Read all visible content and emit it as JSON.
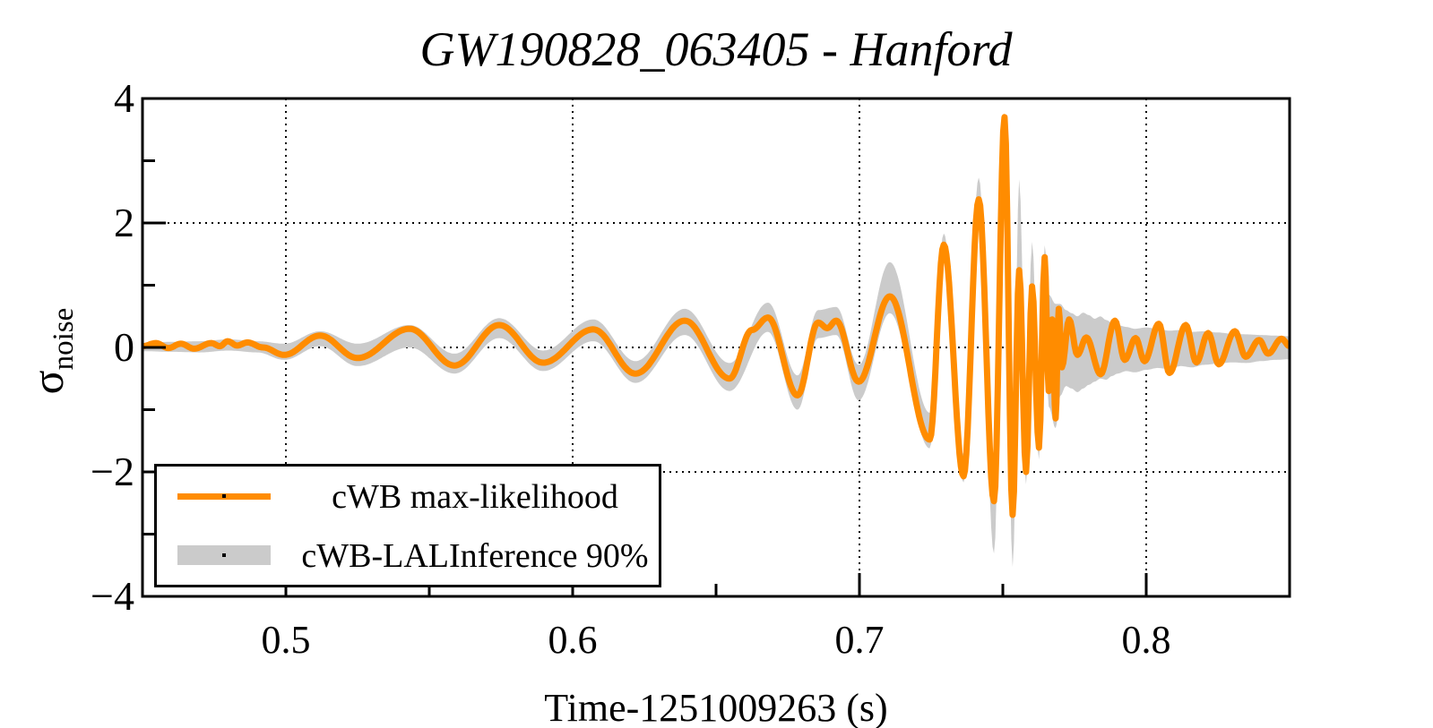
{
  "title": "GW190828_063405 - Hanford",
  "colors": {
    "line": "#FF8C00",
    "band": "#CBCBCB",
    "frame": "#000000",
    "grid": "#000000",
    "background": "#FFFFFF"
  },
  "legend": {
    "entries": [
      {
        "label": "cWB max-likelihood",
        "type": "line"
      },
      {
        "label": "cWB-LALInference 90%",
        "type": "band"
      }
    ]
  },
  "axes": {
    "ylabel_symbol": "σ",
    "ylabel_subscript": "noise",
    "xlabel": "Time-1251009263 (s)",
    "x_ticks": [
      {
        "value": 0.5,
        "label": "0.5"
      },
      {
        "value": 0.6,
        "label": "0.6"
      },
      {
        "value": 0.7,
        "label": "0.7"
      },
      {
        "value": 0.8,
        "label": "0.8"
      }
    ],
    "y_ticks": [
      {
        "value": 4,
        "label": "4"
      },
      {
        "value": 2,
        "label": "2"
      },
      {
        "value": 0,
        "label": "0"
      },
      {
        "value": -2,
        "label": "−2"
      },
      {
        "value": -4,
        "label": "−4"
      }
    ],
    "x_minor": [
      0.45,
      0.55,
      0.65,
      0.75,
      0.85
    ],
    "y_minor": [
      -3,
      -1,
      1,
      3
    ],
    "grid_x": [
      0.5,
      0.6,
      0.7,
      0.8
    ],
    "grid_y": [
      -2,
      0,
      2
    ]
  },
  "chart_data": {
    "type": "line",
    "title": "GW190828_063405 - Hanford",
    "xlabel": "Time-1251009263 (s)",
    "ylabel": "sigma_noise",
    "xlim": [
      0.45,
      0.85
    ],
    "ylim": [
      -4,
      4
    ],
    "grid": true,
    "legend_position": "lower-left",
    "series": [
      {
        "name": "cWB max-likelihood",
        "style": "line",
        "color": "#FF8C00",
        "points": [
          [
            0.45,
            0.02
          ],
          [
            0.4547,
            0.07
          ],
          [
            0.459,
            -0.01
          ],
          [
            0.4634,
            0.06
          ],
          [
            0.468,
            -0.02
          ],
          [
            0.474,
            0.07
          ],
          [
            0.477,
            0.02
          ],
          [
            0.4797,
            0.1
          ],
          [
            0.483,
            0.03
          ],
          [
            0.4866,
            0.08
          ],
          [
            0.492,
            0.0
          ],
          [
            0.4994,
            -0.12
          ],
          [
            0.5119,
            0.19
          ],
          [
            0.525,
            -0.17
          ],
          [
            0.5431,
            0.3
          ],
          [
            0.5588,
            -0.29
          ],
          [
            0.5744,
            0.36
          ],
          [
            0.5897,
            -0.245
          ],
          [
            0.6072,
            0.29
          ],
          [
            0.6219,
            -0.42
          ],
          [
            0.6391,
            0.43
          ],
          [
            0.6547,
            -0.5
          ],
          [
            0.6625,
            0.28
          ],
          [
            0.6681,
            0.48
          ],
          [
            0.6784,
            -0.77
          ],
          [
            0.6856,
            0.4
          ],
          [
            0.6888,
            0.31
          ],
          [
            0.6919,
            0.43
          ],
          [
            0.6997,
            -0.55
          ],
          [
            0.7106,
            0.82
          ],
          [
            0.7245,
            -1.48
          ],
          [
            0.7294,
            1.65
          ],
          [
            0.7363,
            -2.07
          ],
          [
            0.7416,
            2.38
          ],
          [
            0.7469,
            -2.47
          ],
          [
            0.7506,
            3.7
          ],
          [
            0.7534,
            -2.69
          ],
          [
            0.7557,
            1.24
          ],
          [
            0.7581,
            -2.0
          ],
          [
            0.7602,
            0.98
          ],
          [
            0.7626,
            -1.61
          ],
          [
            0.7646,
            1.45
          ],
          [
            0.766,
            -0.7
          ],
          [
            0.7672,
            0.45
          ],
          [
            0.7684,
            -1.14
          ],
          [
            0.7695,
            0.62
          ],
          [
            0.7706,
            -0.32
          ],
          [
            0.7731,
            0.45
          ],
          [
            0.776,
            -0.12
          ],
          [
            0.7791,
            0.16
          ],
          [
            0.7841,
            -0.43
          ],
          [
            0.7891,
            0.43
          ],
          [
            0.7925,
            -0.2
          ],
          [
            0.7963,
            0.15
          ],
          [
            0.7994,
            -0.22
          ],
          [
            0.8044,
            0.38
          ],
          [
            0.8081,
            -0.41
          ],
          [
            0.8138,
            0.36
          ],
          [
            0.8175,
            -0.24
          ],
          [
            0.8216,
            0.23
          ],
          [
            0.8253,
            -0.27
          ],
          [
            0.8309,
            0.26
          ],
          [
            0.8347,
            -0.15
          ],
          [
            0.8394,
            0.12
          ],
          [
            0.8425,
            -0.1
          ],
          [
            0.8472,
            0.14
          ],
          [
            0.85,
            0.02
          ]
        ]
      },
      {
        "name": "cWB-LALInference 90%",
        "style": "band",
        "color": "#CBCBCB",
        "lower": [
          [
            0.45,
            -0.06
          ],
          [
            0.46,
            -0.07
          ],
          [
            0.47,
            -0.08
          ],
          [
            0.48,
            -0.05
          ],
          [
            0.49,
            -0.08
          ],
          [
            0.4994,
            -0.2
          ],
          [
            0.5119,
            0.02
          ],
          [
            0.525,
            -0.3
          ],
          [
            0.5431,
            0.0
          ],
          [
            0.5588,
            -0.42
          ],
          [
            0.5744,
            0.15
          ],
          [
            0.5897,
            -0.38
          ],
          [
            0.6072,
            0.1
          ],
          [
            0.6219,
            -0.57
          ],
          [
            0.6391,
            0.2
          ],
          [
            0.6547,
            -0.7
          ],
          [
            0.6681,
            0.25
          ],
          [
            0.6784,
            -1.0
          ],
          [
            0.6856,
            0.15
          ],
          [
            0.6919,
            0.2
          ],
          [
            0.6997,
            -0.85
          ],
          [
            0.7106,
            0.55
          ],
          [
            0.7245,
            -1.62
          ],
          [
            0.7294,
            1.4
          ],
          [
            0.7363,
            -2.17
          ],
          [
            0.7416,
            2.05
          ],
          [
            0.7469,
            -3.31
          ],
          [
            0.7506,
            3.25
          ],
          [
            0.7534,
            -3.53
          ],
          [
            0.7557,
            0.45
          ],
          [
            0.7581,
            -2.2
          ],
          [
            0.7602,
            0.15
          ],
          [
            0.7626,
            -1.8
          ],
          [
            0.7646,
            0.6
          ],
          [
            0.766,
            -0.95
          ],
          [
            0.7684,
            -1.3
          ],
          [
            0.77,
            -0.78
          ],
          [
            0.772,
            -0.62
          ],
          [
            0.774,
            -0.66
          ],
          [
            0.776,
            -0.72
          ],
          [
            0.778,
            -0.66
          ],
          [
            0.78,
            -0.6
          ],
          [
            0.782,
            -0.55
          ],
          [
            0.784,
            -0.5
          ],
          [
            0.786,
            -0.52
          ],
          [
            0.788,
            -0.46
          ],
          [
            0.79,
            -0.42
          ],
          [
            0.793,
            -0.38
          ],
          [
            0.796,
            -0.4
          ],
          [
            0.8,
            -0.36
          ],
          [
            0.804,
            -0.33
          ],
          [
            0.808,
            -0.35
          ],
          [
            0.812,
            -0.3
          ],
          [
            0.816,
            -0.32
          ],
          [
            0.82,
            -0.28
          ],
          [
            0.825,
            -0.26
          ],
          [
            0.83,
            -0.24
          ],
          [
            0.835,
            -0.25
          ],
          [
            0.84,
            -0.22
          ],
          [
            0.845,
            -0.2
          ],
          [
            0.85,
            -0.19
          ]
        ],
        "upper": [
          [
            0.45,
            0.07
          ],
          [
            0.46,
            0.09
          ],
          [
            0.47,
            0.1
          ],
          [
            0.48,
            0.13
          ],
          [
            0.49,
            0.1
          ],
          [
            0.4994,
            0.06
          ],
          [
            0.5119,
            0.26
          ],
          [
            0.525,
            0.06
          ],
          [
            0.5431,
            0.36
          ],
          [
            0.5588,
            -0.1
          ],
          [
            0.5744,
            0.47
          ],
          [
            0.5897,
            -0.05
          ],
          [
            0.6072,
            0.45
          ],
          [
            0.6219,
            -0.22
          ],
          [
            0.6391,
            0.62
          ],
          [
            0.6547,
            -0.25
          ],
          [
            0.6681,
            0.72
          ],
          [
            0.6784,
            -0.45
          ],
          [
            0.6856,
            0.6
          ],
          [
            0.6919,
            0.65
          ],
          [
            0.6997,
            -0.28
          ],
          [
            0.7106,
            1.37
          ],
          [
            0.7245,
            -1.05
          ],
          [
            0.7294,
            1.83
          ],
          [
            0.7363,
            -1.72
          ],
          [
            0.7416,
            2.73
          ],
          [
            0.7469,
            -2.15
          ],
          [
            0.7506,
            3.75
          ],
          [
            0.7534,
            -2.25
          ],
          [
            0.7557,
            2.7
          ],
          [
            0.7581,
            -0.85
          ],
          [
            0.7602,
            1.7
          ],
          [
            0.7626,
            -0.95
          ],
          [
            0.7646,
            1.64
          ],
          [
            0.766,
            0.85
          ],
          [
            0.7684,
            0.7
          ],
          [
            0.77,
            0.7
          ],
          [
            0.772,
            0.6
          ],
          [
            0.774,
            0.55
          ],
          [
            0.776,
            0.5
          ],
          [
            0.778,
            0.56
          ],
          [
            0.78,
            0.52
          ],
          [
            0.782,
            0.46
          ],
          [
            0.784,
            0.5
          ],
          [
            0.786,
            0.44
          ],
          [
            0.788,
            0.4
          ],
          [
            0.79,
            0.36
          ],
          [
            0.793,
            0.33
          ],
          [
            0.796,
            0.3
          ],
          [
            0.8,
            0.32
          ],
          [
            0.804,
            0.3
          ],
          [
            0.808,
            0.27
          ],
          [
            0.812,
            0.28
          ],
          [
            0.816,
            0.25
          ],
          [
            0.82,
            0.26
          ],
          [
            0.825,
            0.24
          ],
          [
            0.83,
            0.22
          ],
          [
            0.835,
            0.21
          ],
          [
            0.84,
            0.2
          ],
          [
            0.845,
            0.19
          ],
          [
            0.85,
            0.18
          ]
        ]
      }
    ]
  }
}
